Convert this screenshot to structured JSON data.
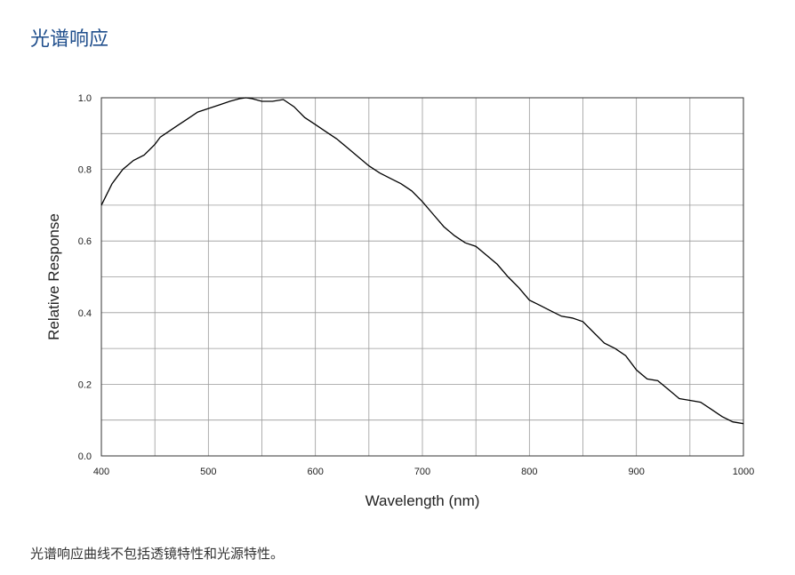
{
  "page": {
    "title": "光谱响应",
    "caption": "光谱响应曲线不包括透镜特性和光源特性。"
  },
  "chart_data": {
    "type": "line",
    "title": "",
    "xlabel": "Wavelength (nm)",
    "ylabel": "Relative Response",
    "xlim": [
      400,
      1000
    ],
    "ylim": [
      0.0,
      1.0
    ],
    "x_ticks": [
      400,
      500,
      600,
      700,
      800,
      900,
      1000
    ],
    "x_tick_labels": [
      "400",
      "500",
      "600",
      "700",
      "800",
      "900",
      "1000"
    ],
    "y_ticks": [
      0.0,
      0.2,
      0.4,
      0.6,
      0.8,
      1.0
    ],
    "y_tick_labels": [
      "0.0",
      "0.2",
      "0.4",
      "0.6",
      "0.8",
      "1.0"
    ],
    "grid": true,
    "line_color": "#000000",
    "series": [
      {
        "x": [
          400,
          410,
          420,
          430,
          440,
          450,
          455,
          460,
          470,
          480,
          490,
          500,
          510,
          520,
          530,
          535,
          540,
          550,
          560,
          570,
          580,
          590,
          600,
          610,
          620,
          630,
          640,
          650,
          660,
          670,
          680,
          690,
          700,
          710,
          720,
          730,
          740,
          750,
          760,
          770,
          780,
          790,
          800,
          810,
          820,
          830,
          840,
          850,
          860,
          870,
          880,
          890,
          900,
          910,
          920,
          930,
          940,
          950,
          960,
          970,
          980,
          990,
          1000
        ],
        "y": [
          0.7,
          0.76,
          0.8,
          0.825,
          0.84,
          0.87,
          0.89,
          0.9,
          0.92,
          0.94,
          0.96,
          0.97,
          0.98,
          0.99,
          0.998,
          1.0,
          0.998,
          0.99,
          0.99,
          0.995,
          0.975,
          0.945,
          0.925,
          0.905,
          0.885,
          0.86,
          0.835,
          0.81,
          0.79,
          0.775,
          0.76,
          0.74,
          0.71,
          0.675,
          0.64,
          0.615,
          0.595,
          0.585,
          0.56,
          0.535,
          0.5,
          0.47,
          0.435,
          0.42,
          0.405,
          0.39,
          0.385,
          0.375,
          0.345,
          0.315,
          0.3,
          0.28,
          0.24,
          0.215,
          0.21,
          0.185,
          0.16,
          0.155,
          0.15,
          0.13,
          0.11,
          0.095,
          0.09
        ]
      }
    ]
  }
}
